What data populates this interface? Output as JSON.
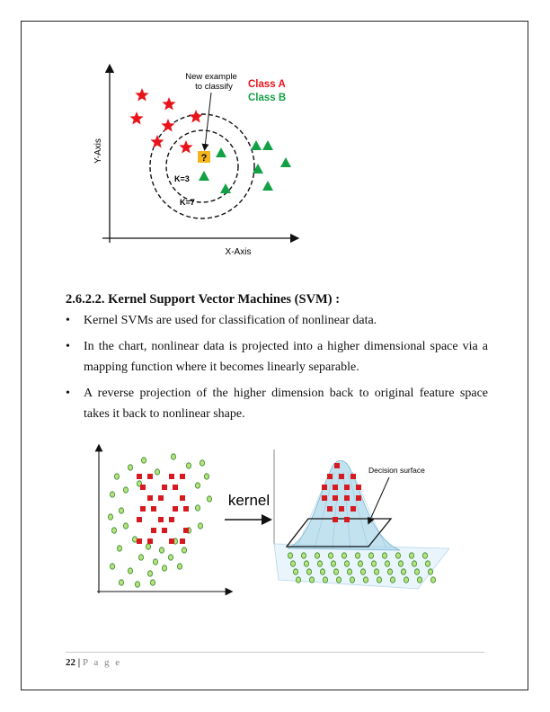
{
  "figure1": {
    "y_axis_label": "Y-Axis",
    "x_axis_label": "X-Axis",
    "annotation_line1": "New example",
    "annotation_line2": "to classify",
    "class_a_label": "Class A",
    "class_b_label": "Class B",
    "unknown_marker": "?",
    "k3_label": "K=3",
    "k7_label": "K=7",
    "colors": {
      "class_a": "#e8141b",
      "class_b": "#13a146",
      "unknown": "#f3b51b"
    }
  },
  "section": {
    "heading": "2.6.2.2. Kernel Support Vector Machines (SVM) :",
    "bullets": [
      "Kernel SVMs are used for classification of nonlinear data.",
      "In the chart, nonlinear data is projected into a higher dimensional space via a mapping function where it becomes linearly separable.",
      "A reverse projection of the higher dimension back to original feature space takes it back to nonlinear shape."
    ]
  },
  "figure2": {
    "kernel_label": "kernel",
    "decision_surface_label": "Decision surface",
    "colors": {
      "square": "#d71920",
      "circle_fill": "#b9e07a",
      "circle_edge": "#2e8b2e",
      "surface": "#a9d6ea"
    }
  },
  "footer": {
    "page_number": "22",
    "separator": "|",
    "page_label": "P a g e"
  }
}
